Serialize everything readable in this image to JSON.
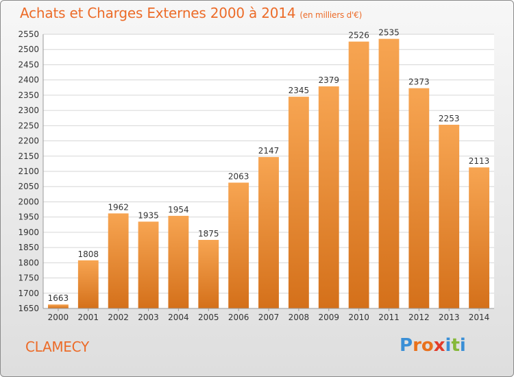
{
  "header": {
    "title": "Achats et Charges Externes 2000 à 2014",
    "unit": "(en milliers d'€)"
  },
  "footer": {
    "city": "CLAMECY",
    "brand_letters": [
      "P",
      "r",
      "o",
      "x",
      "i",
      "t",
      "i"
    ],
    "brand_colors": [
      "#3a8fd6",
      "#e9711c",
      "#e9711c",
      "#e23b2a",
      "#3a8fd6",
      "#86b83a",
      "#3a8fd6"
    ]
  },
  "colors": {
    "bar_top": "#f7a552",
    "bar_bottom": "#d4701a",
    "accent": "#ec6b28",
    "grid": "#d6d6d6",
    "axis_text": "#333333"
  },
  "chart_data": {
    "type": "bar",
    "categories": [
      "2000",
      "2001",
      "2002",
      "2003",
      "2004",
      "2005",
      "2006",
      "2007",
      "2008",
      "2009",
      "2010",
      "2011",
      "2012",
      "2013",
      "2014"
    ],
    "values": [
      1663,
      1808,
      1962,
      1935,
      1954,
      1875,
      2063,
      2147,
      2345,
      2379,
      2526,
      2535,
      2373,
      2253,
      2113
    ],
    "title": "Achats et Charges Externes 2000 à 2014",
    "ylim": [
      1650,
      2550
    ],
    "yticks": [
      1650,
      1700,
      1750,
      1800,
      1850,
      1900,
      1950,
      2000,
      2050,
      2100,
      2150,
      2200,
      2250,
      2300,
      2350,
      2400,
      2450,
      2500,
      2550
    ],
    "grid": true
  }
}
